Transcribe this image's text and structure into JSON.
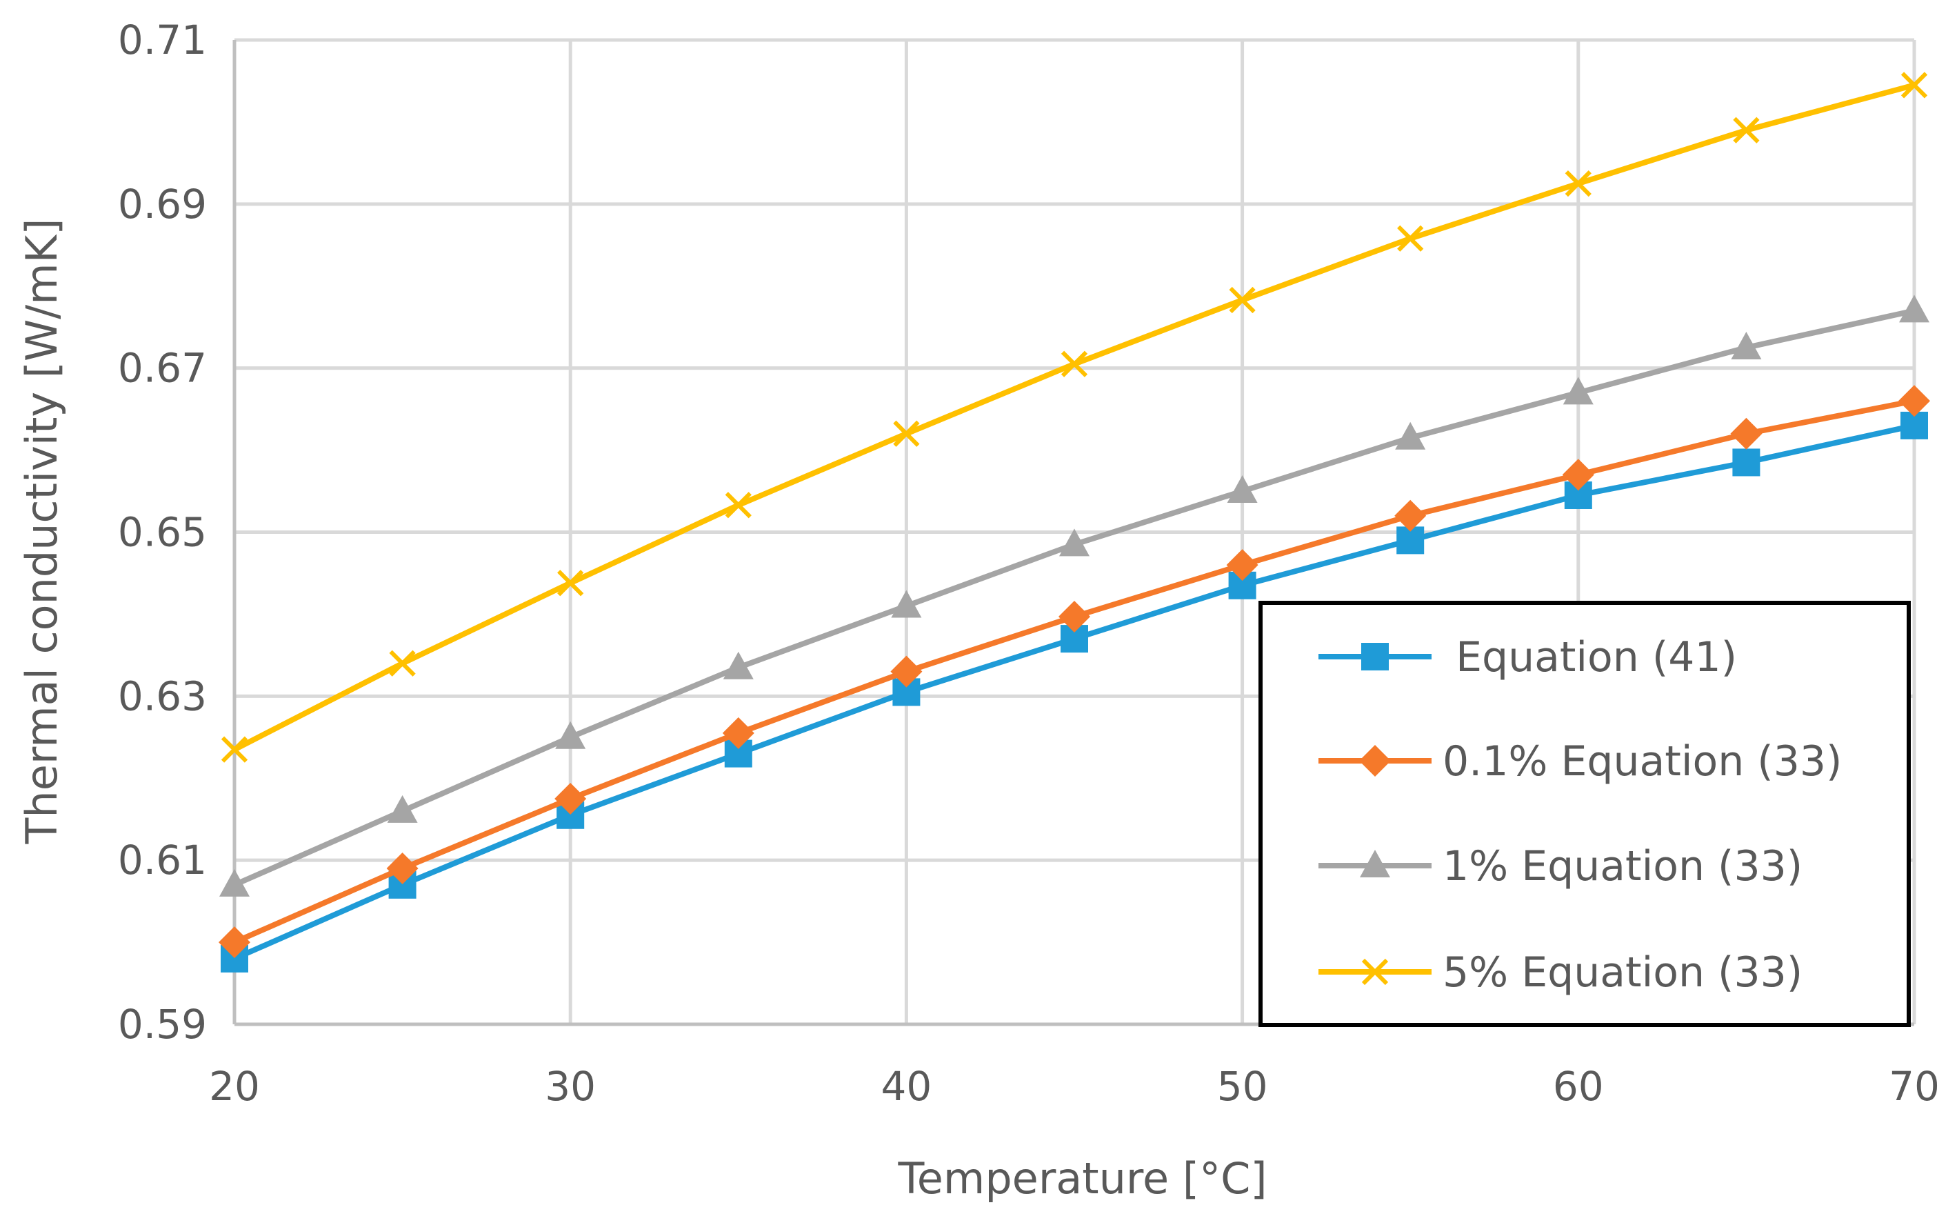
{
  "chart_data": {
    "type": "line",
    "title": "",
    "xlabel": "Temperature [°C]",
    "ylabel": "Thermal conductivity [W/mK]",
    "xlim": [
      20,
      70
    ],
    "ylim": [
      0.59,
      0.71
    ],
    "x_ticks": [
      20,
      30,
      40,
      50,
      60,
      70
    ],
    "x_tick_labels": [
      "20",
      "30",
      "40",
      "50",
      "60",
      "70"
    ],
    "y_ticks": [
      0.59,
      0.61,
      0.63,
      0.65,
      0.67,
      0.69,
      0.71
    ],
    "y_tick_labels": [
      "0.59",
      "0.61",
      "0.63",
      "0.65",
      "0.67",
      "0.69",
      "0.71"
    ],
    "grid": true,
    "legend_position": "bottom-right",
    "x": [
      20,
      25,
      30,
      35,
      40,
      45,
      50,
      55,
      60,
      65,
      70
    ],
    "series": [
      {
        "name": " Equation (41)",
        "color": "#1f9bd7",
        "marker": "square",
        "values": [
          0.598,
          0.607,
          0.6155,
          0.623,
          0.6305,
          0.637,
          0.6435,
          0.649,
          0.6545,
          0.6585,
          0.663
        ]
      },
      {
        "name": "0.1% Equation (33)",
        "color": "#f5792a",
        "marker": "diamond",
        "values": [
          0.6,
          0.609,
          0.6175,
          0.6255,
          0.633,
          0.6397,
          0.646,
          0.652,
          0.657,
          0.662,
          0.666
        ]
      },
      {
        "name": "1% Equation (33)",
        "color": "#a5a5a5",
        "marker": "triangle",
        "values": [
          0.607,
          0.616,
          0.625,
          0.6335,
          0.641,
          0.6485,
          0.655,
          0.6615,
          0.667,
          0.6725,
          0.677
        ]
      },
      {
        "name": "5% Equation (33)",
        "color": "#ffc000",
        "marker": "x",
        "values": [
          0.6235,
          0.634,
          0.6438,
          0.6533,
          0.662,
          0.6705,
          0.6783,
          0.6858,
          0.6925,
          0.699,
          0.7045
        ]
      }
    ]
  }
}
